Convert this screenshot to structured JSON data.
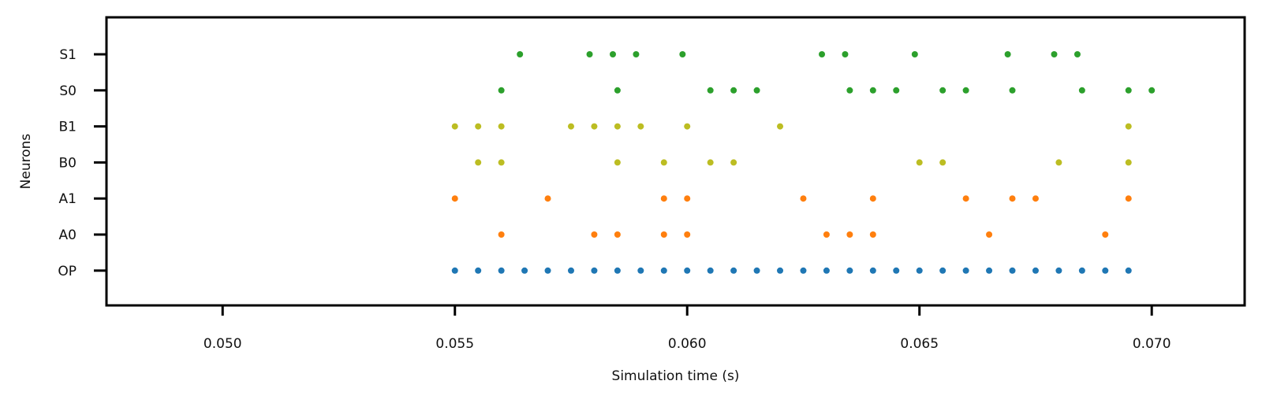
{
  "chart_data": {
    "type": "scatter",
    "title": "",
    "xlabel": "Simulation time (s)",
    "ylabel": "Neurons",
    "xlim": [
      0.0475,
      0.072
    ],
    "xticks": [
      "0.050",
      "0.055",
      "0.060",
      "0.065",
      "0.070"
    ],
    "xtick_values": [
      0.05,
      0.055,
      0.06,
      0.065,
      0.07
    ],
    "categories": [
      "OP",
      "A0",
      "A1",
      "B0",
      "B1",
      "S0",
      "S1"
    ],
    "grid": false,
    "series": [
      {
        "category": "OP",
        "color": "#1f77b4",
        "x": [
          0.055,
          0.0555,
          0.056,
          0.0565,
          0.057,
          0.0575,
          0.058,
          0.0585,
          0.059,
          0.0595,
          0.06,
          0.0605,
          0.061,
          0.0615,
          0.062,
          0.0625,
          0.063,
          0.0635,
          0.064,
          0.0645,
          0.065,
          0.0655,
          0.066,
          0.0665,
          0.067,
          0.0675,
          0.068,
          0.0685,
          0.069,
          0.0695
        ]
      },
      {
        "category": "A0",
        "color": "#ff7f0e",
        "x": [
          0.056,
          0.058,
          0.0585,
          0.0595,
          0.06,
          0.063,
          0.0635,
          0.064,
          0.0665,
          0.069
        ]
      },
      {
        "category": "A1",
        "color": "#ff7f0e",
        "x": [
          0.055,
          0.057,
          0.0595,
          0.06,
          0.0625,
          0.064,
          0.066,
          0.067,
          0.0675,
          0.0695
        ]
      },
      {
        "category": "B0",
        "color": "#bcbd22",
        "x": [
          0.0555,
          0.056,
          0.0585,
          0.0595,
          0.0605,
          0.061,
          0.065,
          0.0655,
          0.068,
          0.0695
        ]
      },
      {
        "category": "B1",
        "color": "#bcbd22",
        "x": [
          0.055,
          0.0555,
          0.056,
          0.0575,
          0.058,
          0.0585,
          0.059,
          0.06,
          0.062,
          0.0695
        ]
      },
      {
        "category": "S0",
        "color": "#2ca02c",
        "x": [
          0.056,
          0.0585,
          0.0605,
          0.061,
          0.0615,
          0.0635,
          0.064,
          0.0645,
          0.0655,
          0.066,
          0.067,
          0.0685,
          0.0695,
          0.07
        ]
      },
      {
        "category": "S1",
        "color": "#2ca02c",
        "x": [
          0.0564,
          0.0579,
          0.0584,
          0.0589,
          0.0599,
          0.0629,
          0.0634,
          0.0649,
          0.0669,
          0.0679,
          0.0684
        ]
      }
    ]
  }
}
